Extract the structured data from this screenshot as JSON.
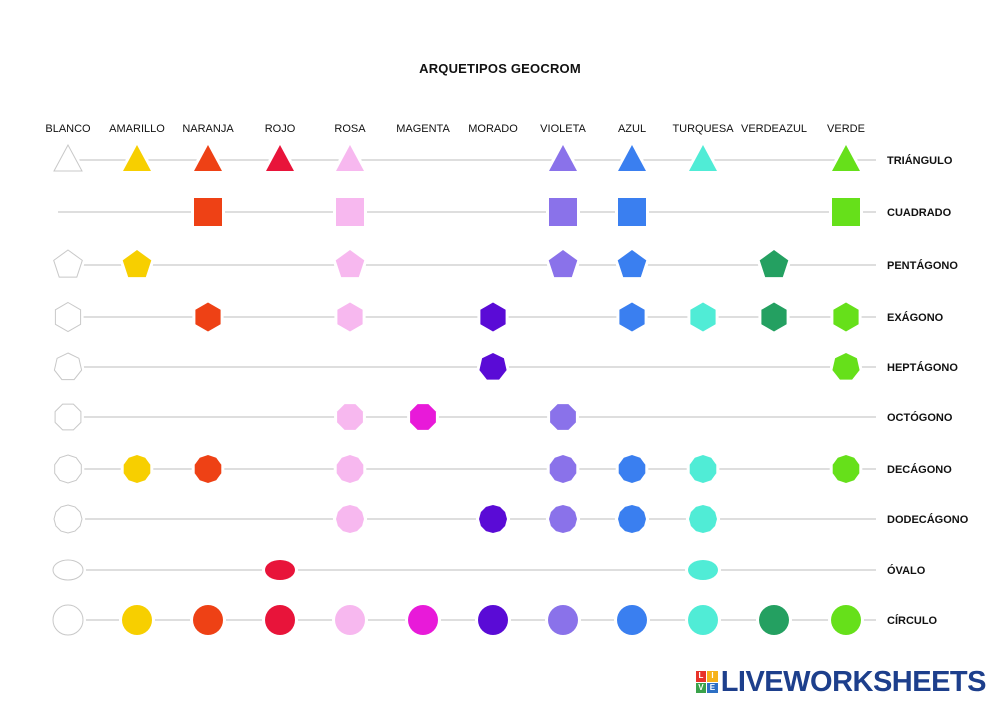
{
  "title": "ARQUETIPOS GEOCROM",
  "columns": [
    {
      "label": "BLANCO",
      "color": "#ffffff"
    },
    {
      "label": "AMARILLO",
      "color": "#f7cf00"
    },
    {
      "label": "NARANJA",
      "color": "#ee4115"
    },
    {
      "label": "ROJO",
      "color": "#e8143a"
    },
    {
      "label": "ROSA",
      "color": "#f7b8ef"
    },
    {
      "label": "MAGENTA",
      "color": "#e81ad9"
    },
    {
      "label": "MORADO",
      "color": "#5a0bd6"
    },
    {
      "label": "VIOLETA",
      "color": "#8a72ea"
    },
    {
      "label": "AZUL",
      "color": "#3a7ff0"
    },
    {
      "label": "TURQUESA",
      "color": "#50ecd6"
    },
    {
      "label": "VERDEAZUL",
      "color": "#24a061"
    },
    {
      "label": "VERDE",
      "color": "#66e01a"
    }
  ],
  "rows": [
    {
      "label": "TRIÁNGULO",
      "shape": "triangle",
      "present": [
        0,
        1,
        2,
        3,
        4,
        7,
        8,
        9,
        11
      ]
    },
    {
      "label": "CUADRADO",
      "shape": "square",
      "present": [
        2,
        4,
        7,
        8,
        11
      ]
    },
    {
      "label": "PENTÁGONO",
      "shape": "pentagon",
      "present": [
        0,
        1,
        4,
        7,
        8,
        10
      ]
    },
    {
      "label": "EXÁGONO",
      "shape": "hexagon",
      "present": [
        0,
        2,
        4,
        6,
        8,
        9,
        10,
        11
      ]
    },
    {
      "label": "HEPTÁGONO",
      "shape": "heptagon",
      "present": [
        0,
        6,
        11
      ]
    },
    {
      "label": "OCTÓGONO",
      "shape": "octagon",
      "present": [
        0,
        4,
        5,
        7
      ]
    },
    {
      "label": "DECÁGONO",
      "shape": "decagon",
      "present": [
        0,
        1,
        2,
        4,
        7,
        8,
        9,
        11
      ]
    },
    {
      "label": "DODECÁGONO",
      "shape": "dodecagon",
      "present": [
        0,
        4,
        6,
        7,
        8,
        9
      ]
    },
    {
      "label": "ÓVALO",
      "shape": "oval",
      "present": [
        0,
        3,
        9
      ]
    },
    {
      "label": "CÍRCULO",
      "shape": "circle",
      "present": [
        0,
        1,
        2,
        3,
        4,
        5,
        6,
        7,
        8,
        9,
        10,
        11
      ]
    }
  ],
  "brand": {
    "name": "LIVEWORKSHEETS",
    "logo_letters": [
      "L",
      "I",
      "V",
      "E"
    ],
    "logo_colors": [
      "#e8332a",
      "#f6b31b",
      "#3aa24a",
      "#2d6fc4"
    ]
  }
}
